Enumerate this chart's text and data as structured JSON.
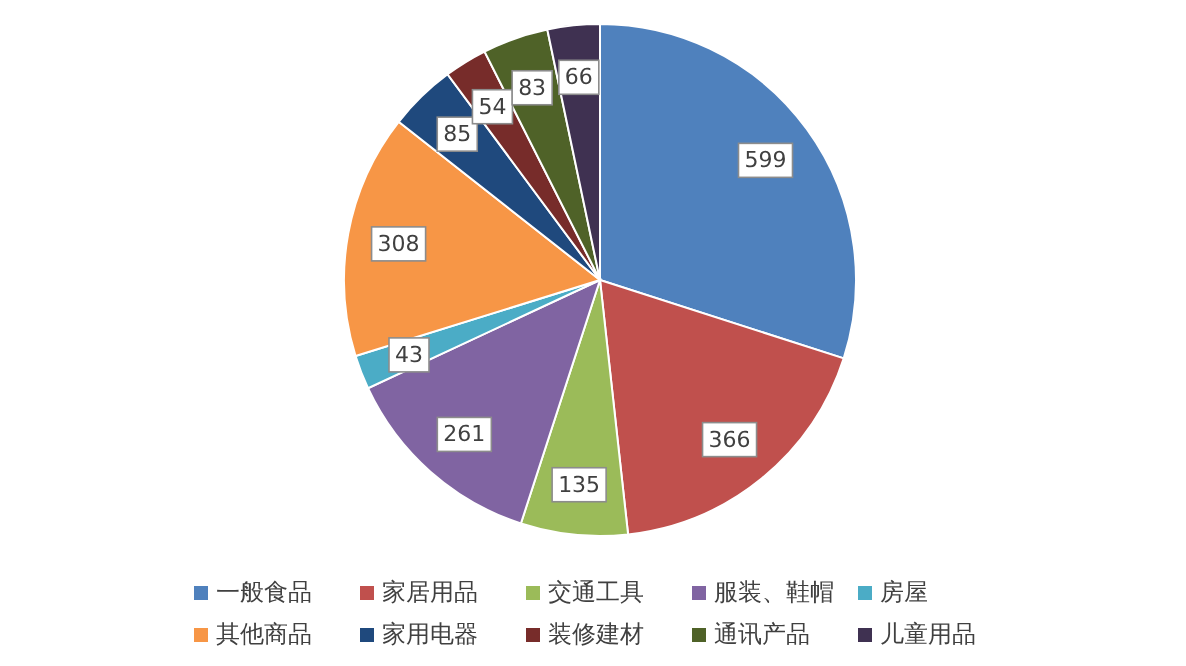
{
  "chart_data": {
    "type": "pie",
    "categories": [
      "一般食品",
      "家居用品",
      "交通工具",
      "服装、鞋帽",
      "房屋",
      "其他商品",
      "家用电器",
      "装修建材",
      "通讯产品",
      "儿童用品"
    ],
    "values": [
      599,
      366,
      135,
      261,
      43,
      308,
      85,
      54,
      83,
      66
    ],
    "colors": [
      "#4f81bd",
      "#c0504d",
      "#9bbb59",
      "#8064a2",
      "#4bacc6",
      "#f79646",
      "#1f497d",
      "#772c2a",
      "#4f6228",
      "#3f3151"
    ],
    "data_labels": true,
    "legend": "bottom"
  }
}
